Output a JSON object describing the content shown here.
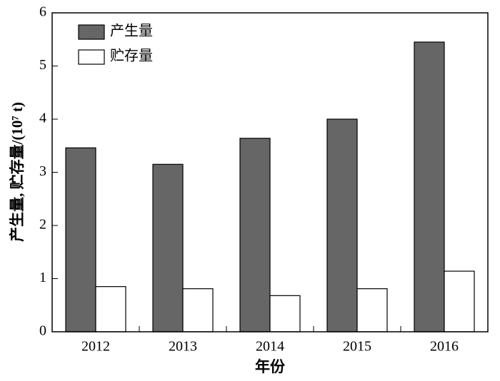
{
  "chart_data": {
    "type": "bar",
    "x_label": "年份",
    "y_label": "产生量, 贮存量/(10⁷ t)",
    "categories": [
      "2012",
      "2013",
      "2014",
      "2015",
      "2016"
    ],
    "series": [
      {
        "name": "产生量",
        "color": "#666666",
        "values": [
          3.46,
          3.15,
          3.64,
          4.0,
          5.45
        ]
      },
      {
        "name": "贮存量",
        "color": "#ffffff",
        "values": [
          0.85,
          0.81,
          0.68,
          0.81,
          1.14
        ]
      }
    ],
    "ylim": [
      0,
      6
    ],
    "yticks": [
      0,
      1,
      2,
      3,
      4,
      5,
      6
    ],
    "legend": "upper-left"
  }
}
